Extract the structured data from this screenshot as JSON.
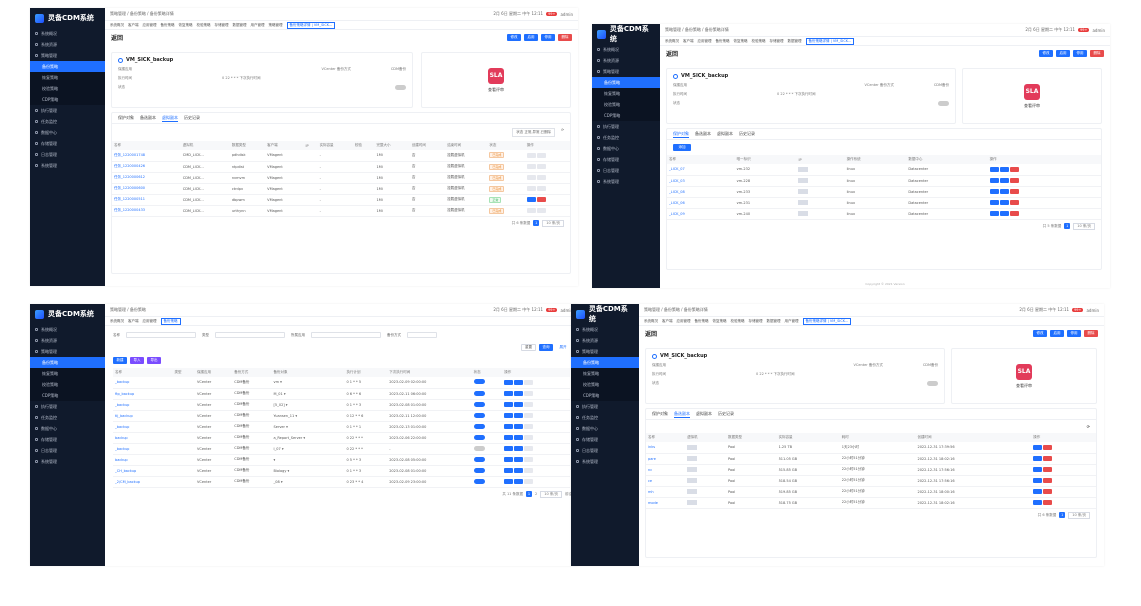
{
  "brand": "灵备CDM系统",
  "nav": {
    "items": [
      "系统概况",
      "系统资源",
      "策略管理",
      "备份策略",
      "恢复策略",
      "校验策略",
      "CDP策略",
      "执行管理",
      "任务监控",
      "数据中心",
      "存储管理",
      "日志管理",
      "系统管理"
    ]
  },
  "top": {
    "breadcrumb": "策略管理 / 备份策略 / 备份策略详情",
    "breadcrumb2": "策略管理 / 备份策略",
    "datetime": "2月 6日 星期二 中午 12:11",
    "badge": "99+",
    "user": "admin"
  },
  "tabs": [
    "系统概况",
    "客户端",
    "应用管理",
    "备份策略",
    "恢复策略",
    "校验策略",
    "存储管理",
    "数据管理",
    "用户管理",
    "策略管理",
    "存储管理",
    "用户管理",
    "备份策略详情 | VM_SICK..."
  ],
  "tabs_short": [
    "系统概况",
    "客户端",
    "应用管理",
    "备份策略"
  ],
  "detail": {
    "back": "返回",
    "name": "VM_SICK_backup",
    "rows": [
      {
        "k": "保護应用",
        "m": "VCenter 备份方式",
        "r": "CDM备份"
      },
      {
        "k": "执行时间",
        "m": "0 22 * * * 下次执行时间",
        "r": ""
      },
      {
        "k": "状态",
        "m": "",
        "r": ""
      }
    ],
    "sla_text": "查看评审",
    "buttons": [
      "修改",
      "启用",
      "停用",
      "删除"
    ]
  },
  "p1": {
    "inner_tabs": [
      "保护对象",
      "备选副本",
      "虚拟副本",
      "历史记录"
    ],
    "filter_label": "状态 正常,异常,已删除",
    "headers": [
      "名称",
      "虚拟机",
      "数据类型",
      "客户端",
      "IP",
      "实际容量",
      "校验",
      "完整大小",
      "创建时间",
      "结束时间",
      "状态",
      "操作"
    ],
    "rows": [
      {
        "name": "任务_1220001748",
        "vm": "CMD_LICK...",
        "type": "pdhdisk",
        "client": "VMagent",
        "val": "-",
        "v2": "1Mi",
        "v3": "否",
        "v4": "挂载虚拟机",
        "status": "已完成"
      },
      {
        "name": "任务_1220000426",
        "vm": "CDM_LICK...",
        "type": "ntpdist",
        "client": "VMagent",
        "val": "-",
        "v2": "1Mi",
        "v3": "否",
        "v4": "挂载虚拟机",
        "status": "已完成"
      },
      {
        "name": "任务_1220000612",
        "vm": "CDM_LICK...",
        "type": "nvmvm",
        "client": "VMagent",
        "val": "-",
        "v2": "1Mi",
        "v3": "否",
        "v4": "挂载虚拟机",
        "status": "已完成"
      },
      {
        "name": "任务_1220000600",
        "vm": "CDM_LICK...",
        "type": "ctrdpv",
        "client": "VMagent",
        "val": "-",
        "v2": "1Mi",
        "v3": "否",
        "v4": "挂载虚拟机",
        "status": "已完成"
      },
      {
        "name": "任务_1220000511",
        "vm": "CDM_LICK...",
        "type": "dbpwm",
        "client": "VMagent",
        "val": "-",
        "v2": "1Mi",
        "v3": "否",
        "v4": "挂载虚拟机",
        "status": "正常"
      },
      {
        "name": "任务_1220000433",
        "vm": "CDM_LICK...",
        "type": "urthynn",
        "client": "VMagent",
        "val": "-",
        "v2": "1Mi",
        "v3": "否",
        "v4": "挂载虚拟机",
        "status": "已完成"
      }
    ],
    "pager_total": "共 6 条数据",
    "pager_page": "1",
    "pager_size": "10 条/页"
  },
  "p2": {
    "inner_tabs": [
      "保护对象",
      "备选副本",
      "虚拟副本",
      "历史记录"
    ],
    "add": "添加",
    "headers": [
      "名称",
      "唯一标识",
      "IP",
      "操作系统",
      "数据中心",
      "操作"
    ],
    "rows": [
      {
        "name": "_LICK_07",
        "id": "vm-232",
        "os": "linux",
        "dc": "Datacenter"
      },
      {
        "name": "_LICK_03",
        "id": "vm-228",
        "os": "linux",
        "dc": "Datacenter"
      },
      {
        "name": "_LICK_08",
        "id": "vm-233",
        "os": "linux",
        "dc": "Datacenter"
      },
      {
        "name": "_LICK_06",
        "id": "vm-231",
        "os": "linux",
        "dc": "Datacenter"
      },
      {
        "name": "_LICK_09",
        "id": "vm-240",
        "os": "linux",
        "dc": "Datacenter"
      }
    ],
    "pager_total": "共 5 条数据",
    "pager_page": "1",
    "pager_size": "10 条/页",
    "footer": "Copyright © 2021 Version"
  },
  "p3": {
    "filters": [
      "名称",
      "类型",
      "所属应用",
      "备份方式"
    ],
    "filter_placeholder": "请输入",
    "actions": [
      "重置",
      "查询",
      "展开"
    ],
    "toolbar": [
      "新建",
      "导入",
      "导出"
    ],
    "headers": [
      "名称",
      "类型",
      "保護应用",
      "备份方式",
      "备份对象",
      "执行计划",
      "下次执行时间",
      "状态",
      "操作"
    ],
    "rows": [
      {
        "name": "_backup",
        "app": "VCenter",
        "mode": "CDM备份",
        "obj": "vm ▾",
        "plan": "0 1 * * 5",
        "next": "2023-02-09 02:00:00",
        "on": true
      },
      {
        "name": "ftp_backup",
        "app": "VCenter",
        "mode": "CDM备份",
        "obj": "M_01 ▾",
        "plan": "0 6 * * 6",
        "next": "2023-02-11 06:00:00",
        "on": true
      },
      {
        "name": "_backup",
        "app": "VCenter",
        "mode": "CDM备份",
        "obj": "[5_02] ▾",
        "plan": "0 1 * * 3",
        "next": "2023-02-08 01:00:00",
        "on": true
      },
      {
        "name": "tij_backup",
        "app": "VCenter",
        "mode": "CDM备份",
        "obj": "Yuansen_11 ▾",
        "plan": "0 12 * * 6",
        "next": "2023-02-11 12:00:00",
        "on": true
      },
      {
        "name": "_backup",
        "app": "VCenter",
        "mode": "CDM备份",
        "obj": "Server ▾",
        "plan": "0 1 * * 1",
        "next": "2023-02-13 01:00:00",
        "on": true
      },
      {
        "name": "backup",
        "app": "VCenter",
        "mode": "CDM备份",
        "obj": "a_Report_Server ▾",
        "plan": "0 22 * * *",
        "next": "2023-02-06 22:00:00",
        "on": true
      },
      {
        "name": "_backup",
        "app": "VCenter",
        "mode": "CDM备份",
        "obj": "I_07 ▾",
        "plan": "0 22 * * *",
        "next": "-",
        "on": false
      },
      {
        "name": "backup",
        "app": "VCenter",
        "mode": "CDM备份",
        "obj": "▾",
        "plan": "0 5 * * 3",
        "next": "2023-02-08 05:00:00",
        "on": true
      },
      {
        "name": "_CH_backup",
        "app": "VCenter",
        "mode": "CDM备份",
        "obj": "Biology ▾",
        "plan": "0 1 * * 3",
        "next": "2023-02-08 01:00:00",
        "on": true
      },
      {
        "name": "_2/CM_backup",
        "app": "VCenter",
        "mode": "CDM备份",
        "obj": "_08 ▾",
        "plan": "0 23 * * 4",
        "next": "2023-02-09 23:00:00",
        "on": true
      }
    ],
    "pager_total": "共 11 条数据",
    "pager_size": "10 条/页",
    "pager_goto": "前往"
  },
  "p4": {
    "inner_tabs": [
      "保护对象",
      "备选副本",
      "虚拟副本",
      "历史记录"
    ],
    "headers": [
      "名称",
      "虚拟机",
      "数据类型",
      "实际容量",
      "耗时",
      "创建时间",
      "操作"
    ],
    "rows": [
      {
        "name": "inks",
        "type": "Pool",
        "size": "1.25 TB",
        "time": "1天23小时",
        "date": "2022-12-31 17:39:56"
      },
      {
        "name": "pare",
        "type": "Pool",
        "size": "511.05 GB",
        "time": "22小时51分钟",
        "date": "2022-12-31 18:02:16"
      },
      {
        "name": "nc",
        "type": "Pool",
        "size": "515.85 GB",
        "time": "22小时51分钟",
        "date": "2022-12-31 17:56:16"
      },
      {
        "name": "ce",
        "type": "Pool",
        "size": "518.54 GB",
        "time": "22小时51分钟",
        "date": "2022-12-31 17:56:16"
      },
      {
        "name": "mh",
        "type": "Pool",
        "size": "519.85 GB",
        "time": "22小时51分钟",
        "date": "2022-12-31 18:00:16"
      },
      {
        "name": "mode",
        "type": "Pool",
        "size": "518.75 GB",
        "time": "22小时51分钟",
        "date": "2022-12-31 18:02:16"
      }
    ],
    "pager_total": "共 6 条数据",
    "pager_page": "1",
    "pager_size": "10 条/页"
  }
}
